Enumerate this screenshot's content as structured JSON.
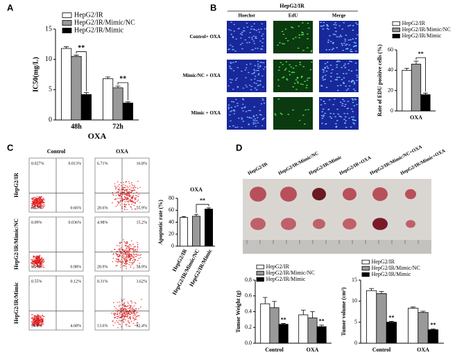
{
  "panels": [
    "A",
    "B",
    "C",
    "D"
  ],
  "microscopy": {
    "title": "HepG2/IR",
    "columns": [
      "Hoechst",
      "EdU",
      "Merge"
    ],
    "rows": [
      "Control+ OXA",
      "Mimic/NC + OXA",
      "Mimic + OXA"
    ]
  },
  "flow": {
    "columns": [
      "Control",
      "OXA"
    ],
    "rows": [
      "HepG2/IR",
      "HepG2/IR/Mimic/NC",
      "HepG2/IR/Mimic"
    ],
    "quadrants": [
      [
        [
          "0.027%",
          "0.013%",
          "99.3%",
          "0.66%"
        ],
        [
          "6.71%",
          "16.8%",
          "20.6%",
          "55.9%"
        ]
      ],
      [
        [
          "0.09%",
          "0.036%",
          "98.9%",
          "0.98%"
        ],
        [
          "4.98%",
          "15.2%",
          "20.9%",
          "58.9%"
        ]
      ],
      [
        [
          "0.55%",
          "0.12%",
          "94.6%",
          "4.68%"
        ],
        [
          "0.31%",
          "3.62%",
          "13.6%",
          "82.4%"
        ]
      ]
    ]
  },
  "tumor_photo": {
    "labels": [
      "HepG2/IR",
      "HepG2/IR/Mimic/NC",
      "HepG2/IR/Mimic",
      "HepG2/IR+OXA",
      "HepG2/IR/Mimic/NC+OXA",
      "HepG2/IR/Mimic+OXA"
    ]
  },
  "chart_data": [
    {
      "type": "bar",
      "categories": [
        "48h",
        "72h"
      ],
      "series": [
        {
          "name": "HepG2/IR",
          "color": "#ffffff",
          "values": [
            11.8,
            6.8
          ],
          "errors": [
            0.3,
            0.3
          ]
        },
        {
          "name": "HepG2/IR/Mimic/NC",
          "color": "#999999",
          "values": [
            10.5,
            5.3
          ],
          "errors": [
            0.2,
            0.3
          ]
        },
        {
          "name": "HepG2/IR/Mimic",
          "color": "#000000",
          "values": [
            4.2,
            2.8
          ],
          "errors": [
            0.3,
            0.2
          ]
        }
      ],
      "xlabel": "OXA",
      "ylabel": "IC50(mg/L)",
      "ylim": [
        0,
        15
      ],
      "yticks": [
        0,
        5,
        10,
        15
      ],
      "annotations": [
        "**",
        "**"
      ]
    },
    {
      "type": "bar",
      "categories": [
        "OXA"
      ],
      "series": [
        {
          "name": "HepG2/IR",
          "color": "#ffffff",
          "values": [
            40
          ],
          "errors": [
            2
          ]
        },
        {
          "name": "HepG2/IR/Mimic/NC",
          "color": "#999999",
          "values": [
            46
          ],
          "errors": [
            3
          ]
        },
        {
          "name": "HepG2/IR/Mimic",
          "color": "#000000",
          "values": [
            16
          ],
          "errors": [
            1.5
          ]
        }
      ],
      "ylabel": "Rate of EDU positive cells (%)",
      "ylim": [
        0,
        60
      ],
      "yticks": [
        0,
        20,
        40,
        60
      ],
      "annotations": [
        "**"
      ]
    },
    {
      "type": "bar",
      "title": "OXA",
      "categories": [
        "HepG2/IR",
        "HepG2/IR/Mimic/NC",
        "HepG2/IR/Mimic"
      ],
      "values": [
        48,
        50,
        62
      ],
      "errors": [
        1.5,
        3,
        2
      ],
      "colors": [
        "#ffffff",
        "#999999",
        "#000000"
      ],
      "ylabel": "Apoptotic rate (%)",
      "ylim": [
        0,
        80
      ],
      "yticks": [
        0,
        20,
        40,
        60,
        80
      ],
      "annotations": [
        "**"
      ]
    },
    {
      "type": "bar",
      "categories": [
        "Control",
        "OXA"
      ],
      "series": [
        {
          "name": "HepG2/IR",
          "color": "#ffffff",
          "values": [
            0.5,
            0.36
          ],
          "errors": [
            0.08,
            0.06
          ]
        },
        {
          "name": "HepG2/IR/Mimic/NC",
          "color": "#999999",
          "values": [
            0.45,
            0.32
          ],
          "errors": [
            0.08,
            0.08
          ]
        },
        {
          "name": "HepG2/IR/Mimic",
          "color": "#000000",
          "values": [
            0.24,
            0.21
          ],
          "errors": [
            0.01,
            0.02
          ]
        }
      ],
      "ylabel": "Tumor Weight (g)",
      "ylim": [
        0,
        0.8
      ],
      "yticks": [
        {
          "value": 0,
          "label": "0.0"
        },
        0.2,
        0.4,
        0.6,
        0.8
      ],
      "annotations": [
        "**",
        "**"
      ]
    },
    {
      "type": "bar",
      "categories": [
        "Control",
        "OXA"
      ],
      "series": [
        {
          "name": "HepG2/IR",
          "color": "#ffffff",
          "values": [
            12.5,
            8.3
          ],
          "errors": [
            0.5,
            0.3
          ]
        },
        {
          "name": "HepG2/IR/Mimic/NC",
          "color": "#999999",
          "values": [
            11.8,
            7.3
          ],
          "errors": [
            0.5,
            0.3
          ]
        },
        {
          "name": "HepG2/IR/Mimic",
          "color": "#000000",
          "values": [
            5.0,
            3.2
          ],
          "errors": [
            0.2,
            0.2
          ]
        }
      ],
      "ylabel": "Tumor volume (cm³)",
      "ylim": [
        0,
        15
      ],
      "yticks": [
        0,
        5,
        10,
        15
      ],
      "annotations": [
        "**",
        "**"
      ]
    }
  ]
}
